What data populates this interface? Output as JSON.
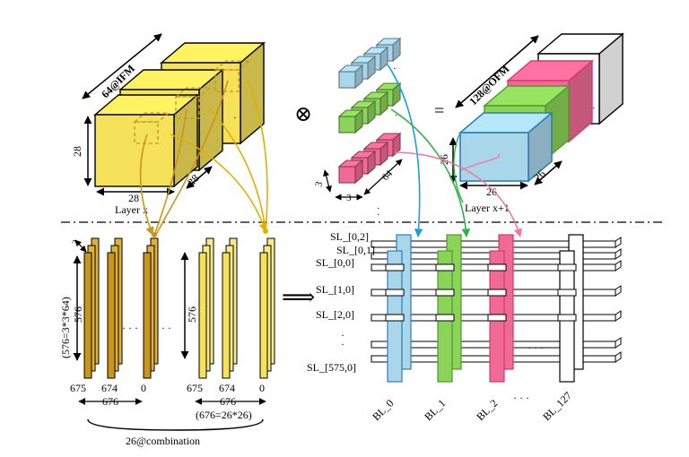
{
  "colors": {
    "ifm_yellow": "#f5e15a",
    "ifm_gold": "#c9961a",
    "gold_dark": "#b8860b",
    "kernel_blue": "#a9d6e8",
    "kernel_green": "#8cd35a",
    "kernel_pink": "#f06a96",
    "arrow_blue": "#1aa0dc",
    "arrow_green": "#2db34a",
    "arrow_pink": "#f07aa0",
    "arrow_gold": "#e0b000"
  },
  "labels": {
    "ifm_depth": "64@IFM",
    "ifm_height": "28",
    "ifm_width": "28",
    "ifm_side": "28",
    "layer_x": "Layer x",
    "conv_symbol": "⊗",
    "equals": "=",
    "kernel_h": "3",
    "kernel_w": "3",
    "kernel_depth": "64",
    "ofm_depth": "128@OFM",
    "ofm_height": "26",
    "ofm_width": "26",
    "ofm_side": "26",
    "layer_x1": "Layer x+1",
    "col_depth": "3",
    "col_height": "576",
    "col_formula": "(576=3*3*64)",
    "col_height2": "576",
    "col_index_left": [
      "675",
      "674",
      "0"
    ],
    "col_index_right": [
      "675",
      "674",
      "0"
    ],
    "span_left": "676",
    "span_right": "676",
    "span_formula": "(676=26*26)",
    "combination": "26@combination",
    "implies": "⟹",
    "dots": "· · ·",
    "sl_labels": [
      "SL_[0,2]",
      "SL_[0,1]",
      "SL_[0,0]",
      "SL_[1,0]",
      "SL_[2,0]",
      "SL_[575,0]"
    ],
    "bl_labels": [
      "BL_0",
      "BL_1",
      "BL_2",
      "BL_127"
    ],
    "bl_dots": "· · ·"
  }
}
